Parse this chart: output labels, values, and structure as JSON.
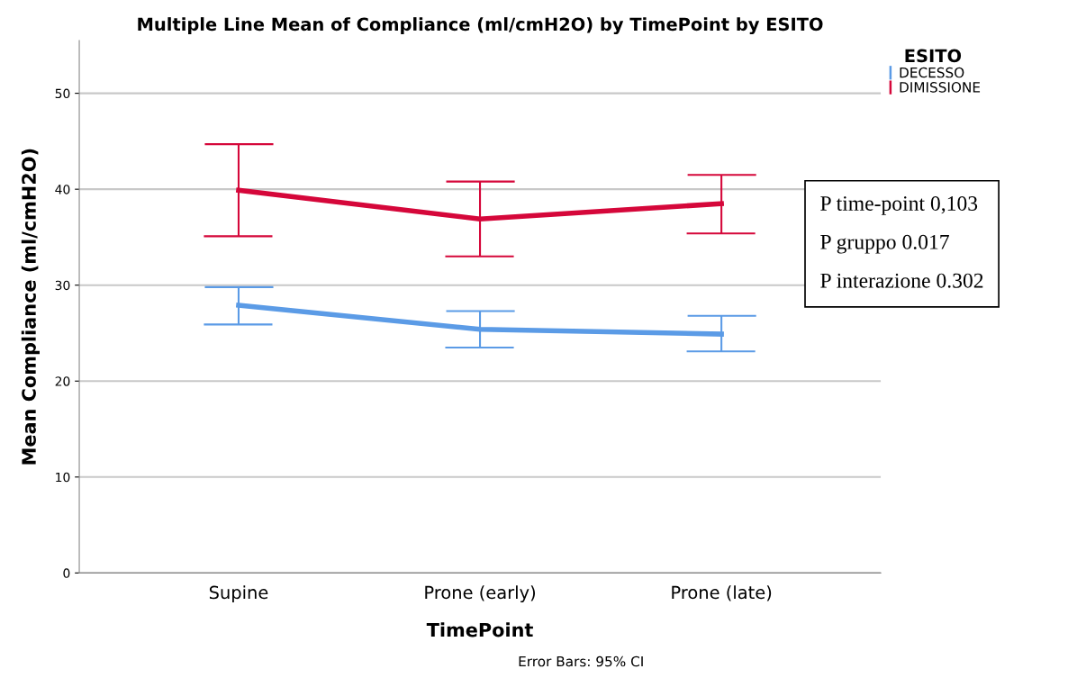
{
  "chart_data": {
    "type": "line",
    "title": "Multiple Line Mean of Compliance (ml/cmH2O) by TimePoint by ESITO",
    "xlabel": "TimePoint",
    "ylabel": "Mean Compliance (ml/cmH2O)",
    "legend_title": "ESITO",
    "categories": [
      "Supine",
      "Prone (early)",
      "Prone (late)"
    ],
    "series": [
      {
        "name": "DECESSO",
        "color": "#5b9be6",
        "values": [
          27.9,
          25.4,
          24.9
        ],
        "errors": [
          [
            25.9,
            29.8
          ],
          [
            23.5,
            27.3
          ],
          [
            23.1,
            26.8
          ]
        ]
      },
      {
        "name": "DIMISSIONE",
        "color": "#d5073a",
        "values": [
          39.9,
          36.9,
          38.5
        ],
        "errors": [
          [
            35.1,
            44.7
          ],
          [
            33.0,
            40.8
          ],
          [
            35.4,
            41.5
          ]
        ]
      }
    ],
    "ylim": [
      0,
      55.5
    ],
    "yticks": [
      0,
      10,
      20,
      30,
      40,
      50
    ],
    "grid": "y",
    "legend": "top right",
    "marker": "none",
    "line_style": "solid",
    "annotations": [
      "P time-point 0,103",
      "P gruppo 0.017",
      "P interazione 0.302",
      "Error Bars: 95% CI"
    ]
  }
}
